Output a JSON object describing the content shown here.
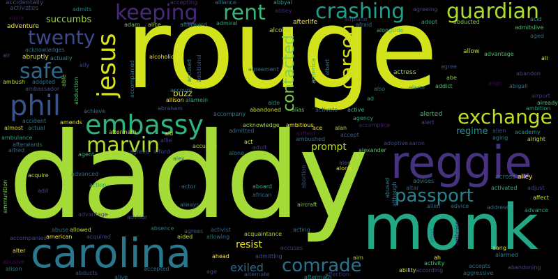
{
  "background_color": "#000000",
  "words": [
    {
      "text": "rouge",
      "color": "#d2e21b",
      "rotated": false
    },
    {
      "text": "daddy",
      "color": "#a5db36",
      "rotated": false
    },
    {
      "text": "monk",
      "color": "#22a884",
      "rotated": false
    },
    {
      "text": "carolina",
      "color": "#2a788e",
      "rotated": false
    },
    {
      "text": "reggie",
      "color": "#46327e",
      "rotated": false
    },
    {
      "text": "embassy",
      "color": "#2fb47c",
      "rotated": false
    },
    {
      "text": "phil",
      "color": "#3b528b",
      "rotated": false
    },
    {
      "text": "jesus",
      "color": "#d8e219",
      "rotated": true
    },
    {
      "text": "keeping",
      "color": "#482878",
      "rotated": false
    },
    {
      "text": "rent",
      "color": "#35b779",
      "rotated": false
    },
    {
      "text": "crashing",
      "color": "#1fa088",
      "rotated": false
    },
    {
      "text": "guardian",
      "color": "#addc30",
      "rotated": false
    },
    {
      "text": "twenty",
      "color": "#3e4989",
      "rotated": false
    },
    {
      "text": "safe",
      "color": "#31688e",
      "rotated": false
    },
    {
      "text": "marvin",
      "color": "#b5de2b",
      "rotated": false
    },
    {
      "text": "exchange",
      "color": "#c2df23",
      "rotated": false
    },
    {
      "text": "passport",
      "color": "#26828e",
      "rotated": false
    },
    {
      "text": "comrade",
      "color": "#2c728e",
      "rotated": false
    },
    {
      "text": "carson",
      "color": "#d0e11c",
      "rotated": true
    },
    {
      "text": "contacted",
      "color": "#7ad151",
      "rotated": true
    },
    {
      "text": "succumbs",
      "color": "#9bd93c",
      "rotated": false
    },
    {
      "text": "resist",
      "color": "#e7e419",
      "rotated": false
    },
    {
      "text": "exiled",
      "color": "#306a8e",
      "rotated": false
    },
    {
      "text": "regime",
      "color": "#21918c",
      "rotated": false
    },
    {
      "text": "prompt",
      "color": "#b8de29",
      "rotated": false
    },
    {
      "text": "buzz",
      "color": "#d5e21a",
      "rotated": false
    },
    {
      "text": "accidentally",
      "color": "#404688",
      "rotated": false
    },
    {
      "text": "activates",
      "color": "#3e4a89",
      "rotated": false
    },
    {
      "text": "alpha",
      "color": "#440154",
      "rotated": false
    },
    {
      "text": "adventure",
      "color": "#fde725",
      "rotated": false
    },
    {
      "text": "admits",
      "color": "#25848e",
      "rotated": false
    },
    {
      "text": "accepting",
      "color": "#472d7b",
      "rotated": false
    },
    {
      "text": "alliance",
      "color": "#2c738e",
      "rotated": false
    },
    {
      "text": "abbyal",
      "color": "#1f9f88",
      "rotated": false
    },
    {
      "text": "agreeing",
      "color": "#3f4788",
      "rotated": false
    },
    {
      "text": "acid",
      "color": "#20928c",
      "rotated": false
    },
    {
      "text": "adam",
      "color": "#6ccd5a",
      "rotated": false
    },
    {
      "text": "alice",
      "color": "#a8db34",
      "rotated": false
    },
    {
      "text": "afterward",
      "color": "#228c8d",
      "rotated": false
    },
    {
      "text": "admiral",
      "color": "#28ae80",
      "rotated": false
    },
    {
      "text": "abbey",
      "color": "#482173",
      "rotated": false
    },
    {
      "text": "airplane",
      "color": "#443983",
      "rotated": false
    },
    {
      "text": "adopt",
      "color": "#25ab82",
      "rotated": false
    },
    {
      "text": "admitslive",
      "color": "#4ac16d",
      "rotated": false
    },
    {
      "text": "alcohol",
      "color": "#b2dd2d",
      "rotated": false
    },
    {
      "text": "afterlife",
      "color": "#fde725",
      "rotated": false
    },
    {
      "text": "afraid",
      "color": "#2d718e",
      "rotated": false
    },
    {
      "text": "alongside",
      "color": "#3dbc74",
      "rotated": false
    },
    {
      "text": "abducted",
      "color": "#7fd34e",
      "rotated": false
    },
    {
      "text": "aged",
      "color": "#2e6d8e",
      "rotated": false
    },
    {
      "text": "acknowledges",
      "color": "#2f6c8e",
      "rotated": false
    },
    {
      "text": "air",
      "color": "#3b528b",
      "rotated": false
    },
    {
      "text": "abruptly",
      "color": "#dde318",
      "rotated": false
    },
    {
      "text": "actually",
      "color": "#25848e",
      "rotated": false
    },
    {
      "text": "ally",
      "color": "#3f4889",
      "rotated": false
    },
    {
      "text": "allow",
      "color": "#c2df23",
      "rotated": false
    },
    {
      "text": "advantage",
      "color": "#46c06f",
      "rotated": false
    },
    {
      "text": "ali",
      "color": "#f1e51d",
      "rotated": false
    },
    {
      "text": "agree",
      "color": "#3b528b",
      "rotated": false
    },
    {
      "text": "able",
      "color": "#86d549",
      "rotated": true
    },
    {
      "text": "abduction",
      "color": "#4ac16d",
      "rotated": true
    },
    {
      "text": "accompanied",
      "color": "#2a778e",
      "rotated": true
    },
    {
      "text": "accused",
      "color": "#26828e",
      "rotated": true
    },
    {
      "text": "additional",
      "color": "#3a548c",
      "rotated": true
    },
    {
      "text": "alcoholic",
      "color": "#f8e621",
      "rotated": false
    },
    {
      "text": "agreement",
      "color": "#2c738e",
      "rotated": false
    },
    {
      "text": "america",
      "color": "#3dbc74",
      "rotated": true
    },
    {
      "text": "albert",
      "color": "#2d708e",
      "rotated": true
    },
    {
      "text": "actress",
      "color": "#a0da39",
      "rotated": false
    },
    {
      "text": "abandon",
      "color": "#3e4989",
      "rotated": false
    },
    {
      "text": "abe",
      "color": "#8bd646",
      "rotated": false
    },
    {
      "text": "addict",
      "color": "#50c46a",
      "rotated": false
    },
    {
      "text": "align",
      "color": "#46085c",
      "rotated": false
    },
    {
      "text": "abigail",
      "color": "#2e6f8e",
      "rotated": false
    },
    {
      "text": "airport",
      "color": "#472f7d",
      "rotated": false
    },
    {
      "text": "already",
      "color": "#54c568",
      "rotated": false
    },
    {
      "text": "ambition",
      "color": "#20a486",
      "rotated": false
    },
    {
      "text": "ambush",
      "color": "#c5e021",
      "rotated": false
    },
    {
      "text": "adopted",
      "color": "#2b758e",
      "rotated": false
    },
    {
      "text": "ambassador",
      "color": "#3b528b",
      "rotated": false
    },
    {
      "text": "also",
      "color": "#2a788e",
      "rotated": false
    },
    {
      "text": "alarm",
      "color": "#21918c",
      "rotated": false
    },
    {
      "text": "account",
      "color": "#287c8e",
      "rotated": false
    },
    {
      "text": "alamein",
      "color": "#31b57b",
      "rotated": false
    },
    {
      "text": "allison",
      "color": "#fde725",
      "rotated": false
    },
    {
      "text": "abraham",
      "color": "#3b528b",
      "rotated": false
    },
    {
      "text": "aide",
      "color": "#1f998a",
      "rotated": false
    },
    {
      "text": "ad",
      "color": "#29af7f",
      "rotated": false
    },
    {
      "text": "accompany",
      "color": "#277f8e",
      "rotated": false
    },
    {
      "text": "abandoned",
      "color": "#d2e21b",
      "rotated": false
    },
    {
      "text": "alias",
      "color": "#63cb5f",
      "rotated": false
    },
    {
      "text": "activate",
      "color": "#2e6e8e",
      "rotated": false
    },
    {
      "text": "active",
      "color": "#3dbc74",
      "rotated": false
    },
    {
      "text": "alerted",
      "color": "#4ac16d",
      "rotated": false
    },
    {
      "text": "alert",
      "color": "#3e4989",
      "rotated": false
    },
    {
      "text": "achieve",
      "color": "#2c728e",
      "rotated": false
    },
    {
      "text": "accident",
      "color": "#287c8e",
      "rotated": false
    },
    {
      "text": "amends",
      "color": "#e5e419",
      "rotated": false
    },
    {
      "text": "acknowledge",
      "color": "#a0da39",
      "rotated": false
    },
    {
      "text": "ambitious",
      "color": "#fde725",
      "rotated": false
    },
    {
      "text": "agency",
      "color": "#25ac82",
      "rotated": false
    },
    {
      "text": "accomplice",
      "color": "#482071",
      "rotated": false
    },
    {
      "text": "almost",
      "color": "#dfe318",
      "rotated": false
    },
    {
      "text": "actual",
      "color": "#2a768e",
      "rotated": false
    },
    {
      "text": "admitted",
      "color": "#2d708e",
      "rotated": false
    },
    {
      "text": "ace",
      "color": "#f6e620",
      "rotated": false
    },
    {
      "text": "alan",
      "color": "#b2dd2d",
      "rotated": false
    },
    {
      "text": "alien",
      "color": "#3b528b",
      "rotated": false
    },
    {
      "text": "academy",
      "color": "#1f968b",
      "rotated": false
    },
    {
      "text": "aging",
      "color": "#25848e",
      "rotated": false
    },
    {
      "text": "alright",
      "color": "#c0df25",
      "rotated": false
    },
    {
      "text": "ambulance",
      "color": "#21a685",
      "rotated": false
    },
    {
      "text": "aftermath",
      "color": "#c8e020",
      "rotated": false
    },
    {
      "text": "aid",
      "color": "#fde725",
      "rotated": false
    },
    {
      "text": "allie",
      "color": "#433e85",
      "rotated": false
    },
    {
      "text": "airfield",
      "color": "#46085c",
      "rotated": false
    },
    {
      "text": "accept",
      "color": "#365c8d",
      "rotated": false
    },
    {
      "text": "afterwards",
      "color": "#2a788e",
      "rotated": false
    },
    {
      "text": "alfred",
      "color": "#31688e",
      "rotated": false
    },
    {
      "text": "agent",
      "color": "#31b57b",
      "rotated": false
    },
    {
      "text": "agreed",
      "color": "#3b528b",
      "rotated": false
    },
    {
      "text": "afford",
      "color": "#3e4989",
      "rotated": false
    },
    {
      "text": "accusing",
      "color": "#b2dd2d",
      "rotated": false
    },
    {
      "text": "alone",
      "color": "#2d718e",
      "rotated": false
    },
    {
      "text": "adult",
      "color": "#433e85",
      "rotated": false
    },
    {
      "text": "ambushed",
      "color": "#2f6c8e",
      "rotated": false
    },
    {
      "text": "adoptive",
      "color": "#3e4989",
      "rotated": false
    },
    {
      "text": "aaron",
      "color": "#443983",
      "rotated": false
    },
    {
      "text": "alexander",
      "color": "#5ec962",
      "rotated": false
    },
    {
      "text": "act",
      "color": "#e2e418",
      "rotated": false
    },
    {
      "text": "alex",
      "color": "#2b758e",
      "rotated": false
    },
    {
      "text": "alec",
      "color": "#3b528b",
      "rotated": false
    },
    {
      "text": "along",
      "color": "#e5e419",
      "rotated": false
    },
    {
      "text": "acquire",
      "color": "#b5de2b",
      "rotated": false
    },
    {
      "text": "advanced",
      "color": "#2f6b8e",
      "rotated": false
    },
    {
      "text": "action",
      "color": "#22a884",
      "rotated": false
    },
    {
      "text": "advises",
      "color": "#287c8e",
      "rotated": false
    },
    {
      "text": "altar",
      "color": "#3b528b",
      "rotated": false
    },
    {
      "text": "across",
      "color": "#2d708e",
      "rotated": false
    },
    {
      "text": "alley",
      "color": "#fde725",
      "rotated": false
    },
    {
      "text": "ammunition",
      "color": "#7ad151",
      "rotated": true
    },
    {
      "text": "add",
      "color": "#3e4989",
      "rotated": false
    },
    {
      "text": "actor",
      "color": "#2c738e",
      "rotated": false
    },
    {
      "text": "aboard",
      "color": "#31b57b",
      "rotated": false
    },
    {
      "text": "african",
      "color": "#2e6d8e",
      "rotated": false
    },
    {
      "text": "abortion",
      "color": "#3b528b",
      "rotated": true
    },
    {
      "text": "abused",
      "color": "#26828e",
      "rotated": true
    },
    {
      "text": "although",
      "color": "#2c728e",
      "rotated": true
    },
    {
      "text": "activated",
      "color": "#29af7f",
      "rotated": false
    },
    {
      "text": "adjust",
      "color": "#3f4788",
      "rotated": false
    },
    {
      "text": "affect",
      "color": "#c8e020",
      "rotated": false
    },
    {
      "text": "always",
      "color": "#2e6f8e",
      "rotated": false
    },
    {
      "text": "aircraft",
      "color": "#7ad151",
      "rotated": false
    },
    {
      "text": "allen",
      "color": "#31688e",
      "rotated": false
    },
    {
      "text": "advice",
      "color": "#2e6f8e",
      "rotated": false
    },
    {
      "text": "address",
      "color": "#2d708e",
      "rotated": false
    },
    {
      "text": "advance",
      "color": "#25ab82",
      "rotated": false
    },
    {
      "text": "abuse",
      "color": "#2d718e",
      "rotated": false
    },
    {
      "text": "allowed",
      "color": "#c0df25",
      "rotated": false
    },
    {
      "text": "advantage",
      "color": "#472f7d",
      "rotated": false
    },
    {
      "text": "advisor",
      "color": "#3e4989",
      "rotated": false
    },
    {
      "text": "absence",
      "color": "#287c8e",
      "rotated": false
    },
    {
      "text": "agrees",
      "color": "#3b528b",
      "rotated": false
    },
    {
      "text": "activist",
      "color": "#31688e",
      "rotated": false
    },
    {
      "text": "acquaintance",
      "color": "#b2dd2d",
      "rotated": false
    },
    {
      "text": "acting",
      "color": "#2a788e",
      "rotated": false
    },
    {
      "text": "ambrose",
      "color": "#46085c",
      "rotated": true
    },
    {
      "text": "accompanies",
      "color": "#3e4989",
      "rotated": false
    },
    {
      "text": "american",
      "color": "#fde725",
      "rotated": false
    },
    {
      "text": "acquired",
      "color": "#3e4989",
      "rotated": false
    },
    {
      "text": "aided",
      "color": "#c8e020",
      "rotated": false
    },
    {
      "text": "allowing",
      "color": "#2e6f8e",
      "rotated": false
    },
    {
      "text": "amid",
      "color": "#2e6d8e",
      "rotated": true
    },
    {
      "text": "alter",
      "color": "#fde725",
      "rotated": false
    },
    {
      "text": "accuses",
      "color": "#433e85",
      "rotated": false
    },
    {
      "text": "aang",
      "color": "#d8e219",
      "rotated": false
    },
    {
      "text": "alarmed",
      "color": "#25848e",
      "rotated": false
    },
    {
      "text": "abusive",
      "color": "#46085c",
      "rotated": false
    },
    {
      "text": "ahead",
      "color": "#fde725",
      "rotated": false
    },
    {
      "text": "admitting",
      "color": "#3b528b",
      "rotated": false
    },
    {
      "text": "aim",
      "color": "#a0da39",
      "rotated": false
    },
    {
      "text": "ah",
      "color": "#fde725",
      "rotated": false
    },
    {
      "text": "activity",
      "color": "#4ac16d",
      "rotated": false
    },
    {
      "text": "accepts",
      "color": "#2e6f8e",
      "rotated": false
    },
    {
      "text": "abandoning",
      "color": "#3e4989",
      "rotated": false
    },
    {
      "text": "alison",
      "color": "#2a788e",
      "rotated": false
    },
    {
      "text": "abducts",
      "color": "#3b528b",
      "rotated": false
    },
    {
      "text": "accepted",
      "color": "#2d708e",
      "rotated": false
    },
    {
      "text": "age",
      "color": "#3e4989",
      "rotated": false
    },
    {
      "text": "alternate",
      "color": "#3b528b",
      "rotated": false
    },
    {
      "text": "affection",
      "color": "#443983",
      "rotated": false
    },
    {
      "text": "ability",
      "color": "#d2e21b",
      "rotated": false
    },
    {
      "text": "according",
      "color": "#3e4989",
      "rotated": false
    },
    {
      "text": "aggressive",
      "color": "#2e6f8e",
      "rotated": false
    },
    {
      "text": "alive",
      "color": "#31688e",
      "rotated": false
    },
    {
      "text": "aftermath",
      "color": "#21918c",
      "rotated": false
    }
  ]
}
